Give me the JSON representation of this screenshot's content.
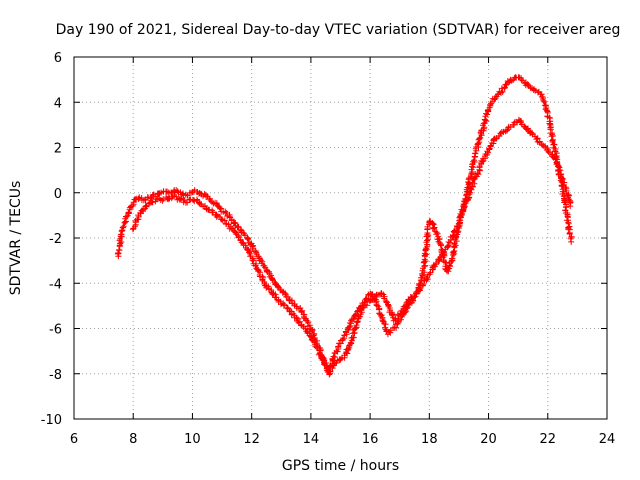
{
  "chart_data": {
    "type": "scatter",
    "title": "Day 190 of 2021, Sidereal Day-to-day VTEC variation (SDTVAR) for receiver areg",
    "xlabel": "GPS time / hours",
    "ylabel": "SDTVAR / TECUs",
    "xlim": [
      6,
      24
    ],
    "ylim": [
      -10,
      6
    ],
    "xticks": [
      "6",
      "8",
      "10",
      "12",
      "14",
      "16",
      "18",
      "20",
      "22",
      "24"
    ],
    "yticks": [
      "-10",
      "-8",
      "-6",
      "-4",
      "-2",
      "0",
      "2",
      "4",
      "6"
    ],
    "grid": true,
    "marker": "plus",
    "series": [
      {
        "name": "SDTVAR",
        "color": "#ff0000",
        "x": [
          7.5,
          7.6,
          7.8,
          8.0,
          8.2,
          8.4,
          8.6,
          8.8,
          9.0,
          9.2,
          9.4,
          9.6,
          9.8,
          10.0,
          10.2,
          10.4,
          10.6,
          10.8,
          11.0,
          11.2,
          11.4,
          11.6,
          11.8,
          12.0,
          12.2,
          12.4,
          12.6,
          12.8,
          13.0,
          13.2,
          13.4,
          13.6,
          13.8,
          14.0,
          14.2,
          14.4,
          14.6,
          14.8,
          15.0,
          15.2,
          15.4,
          15.6,
          15.8,
          16.0,
          16.2,
          16.4,
          16.6,
          16.8,
          17.0,
          17.2,
          17.4,
          17.6,
          17.8,
          18.0,
          18.2,
          18.4,
          18.6,
          18.8,
          19.0,
          19.2,
          19.4,
          19.6,
          19.8,
          20.0,
          20.2,
          20.4,
          20.6,
          20.8,
          21.0,
          21.2,
          21.4,
          21.6,
          21.8,
          22.0,
          22.2,
          22.4,
          22.6,
          22.8
        ],
        "y": [
          -2.8,
          -1.8,
          -1.0,
          -0.4,
          -0.2,
          -0.3,
          -0.2,
          -0.1,
          0.0,
          0.0,
          0.1,
          0.0,
          -0.1,
          0.1,
          0.0,
          -0.1,
          -0.3,
          -0.5,
          -0.8,
          -1.0,
          -1.3,
          -1.6,
          -1.9,
          -2.3,
          -2.8,
          -3.2,
          -3.6,
          -4.0,
          -4.3,
          -4.6,
          -4.9,
          -5.1,
          -5.5,
          -6.0,
          -6.6,
          -7.3,
          -8.0,
          -7.6,
          -7.4,
          -7.1,
          -6.4,
          -5.6,
          -5.0,
          -4.8,
          -4.5,
          -4.4,
          -5.0,
          -5.6,
          -5.4,
          -5.0,
          -4.6,
          -4.4,
          -3.5,
          -1.2,
          -1.6,
          -2.4,
          -3.5,
          -2.8,
          -1.4,
          -0.3,
          0.8,
          1.9,
          2.8,
          3.7,
          4.2,
          4.4,
          4.8,
          5.0,
          5.1,
          4.9,
          4.7,
          4.5,
          4.3,
          3.5,
          2.2,
          0.8,
          -0.6,
          -2.2
        ],
        "x2": [
          8.0,
          8.2,
          8.4,
          8.6,
          8.8,
          9.0,
          9.2,
          9.4,
          9.6,
          9.8,
          10.0,
          10.2,
          10.4,
          10.6,
          10.8,
          11.0,
          11.2,
          11.4,
          11.6,
          11.8,
          12.0,
          12.2,
          12.4,
          12.6,
          12.8,
          13.0,
          13.2,
          13.4,
          13.6,
          13.8,
          14.0,
          14.2,
          14.4,
          14.6,
          14.8,
          15.0,
          15.2,
          15.4,
          15.6,
          15.8,
          16.0,
          16.2,
          16.4,
          16.6,
          16.8,
          17.0,
          17.2,
          17.4,
          17.6,
          17.8,
          18.0,
          18.2,
          18.4,
          18.6,
          18.8,
          19.0,
          19.2,
          19.4,
          19.6,
          19.8,
          20.0,
          20.2,
          20.4,
          20.6,
          20.8,
          21.0,
          21.2,
          21.4,
          21.6,
          21.8,
          22.0,
          22.2,
          22.4,
          22.6,
          22.8
        ],
        "y2": [
          -1.6,
          -1.0,
          -0.6,
          -0.4,
          -0.3,
          -0.3,
          -0.2,
          -0.2,
          -0.3,
          -0.4,
          -0.3,
          -0.4,
          -0.6,
          -0.8,
          -1.0,
          -1.2,
          -1.4,
          -1.7,
          -2.0,
          -2.4,
          -2.8,
          -3.4,
          -3.9,
          -4.3,
          -4.6,
          -4.9,
          -5.1,
          -5.4,
          -5.7,
          -6.0,
          -6.4,
          -6.8,
          -7.4,
          -7.8,
          -7.2,
          -6.6,
          -6.2,
          -5.6,
          -5.2,
          -4.8,
          -4.4,
          -4.8,
          -5.5,
          -6.2,
          -6.0,
          -5.6,
          -5.2,
          -4.8,
          -4.4,
          -4.0,
          -3.6,
          -3.2,
          -2.8,
          -2.4,
          -1.9,
          -1.3,
          -0.6,
          0.1,
          0.8,
          1.4,
          1.9,
          2.3,
          2.6,
          2.8,
          3.0,
          3.2,
          3.0,
          2.7,
          2.4,
          2.1,
          1.9,
          1.6,
          1.0,
          0.2,
          -0.6
        ]
      }
    ]
  }
}
